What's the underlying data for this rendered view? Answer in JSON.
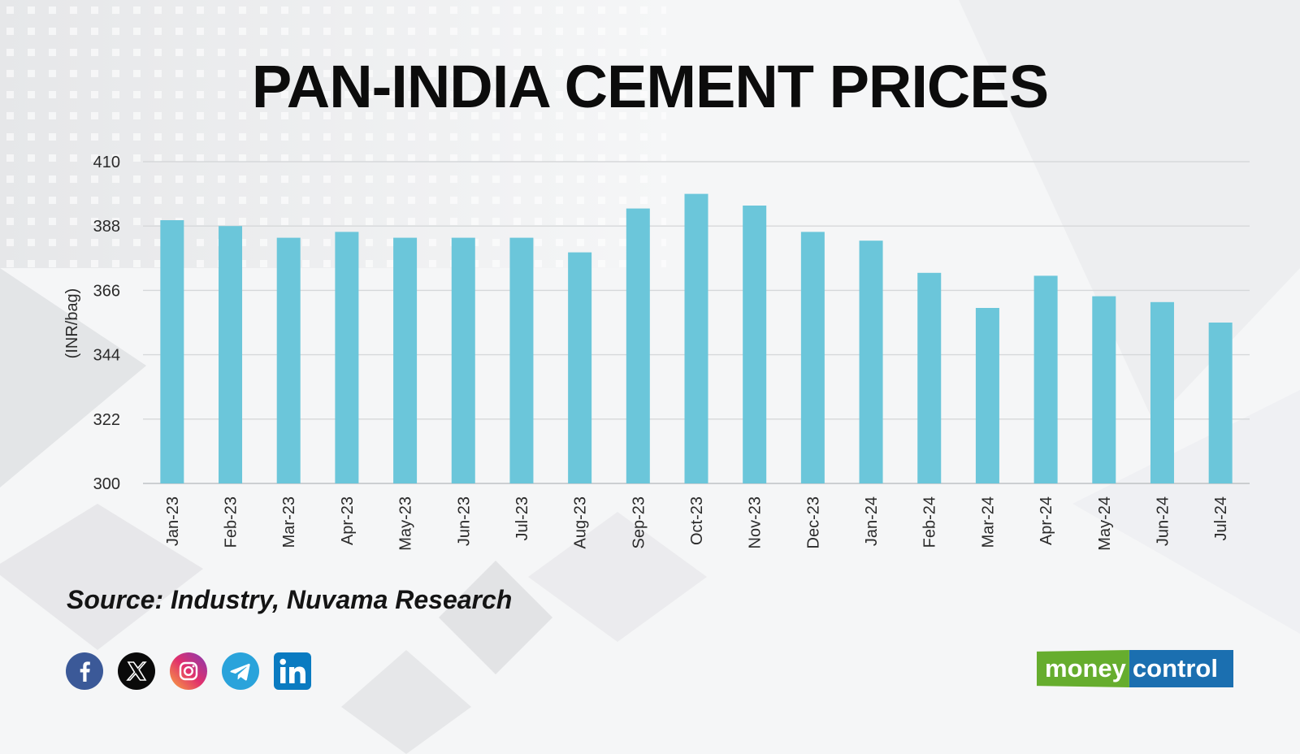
{
  "header": {
    "title": "PAN-INDIA CEMENT PRICES"
  },
  "chart_data": {
    "type": "bar",
    "title": "PAN-INDIA CEMENT PRICES",
    "xlabel": "",
    "ylabel": "(INR/bag)",
    "ylim": [
      300,
      410
    ],
    "yticks": [
      "410",
      "388",
      "366",
      "344",
      "322",
      "300"
    ],
    "grid": true,
    "categories": [
      "Jan-23",
      "Feb-23",
      "Mar-23",
      "Apr-23",
      "May-23",
      "Jun-23",
      "Jul-23",
      "Aug-23",
      "Sep-23",
      "Oct-23",
      "Nov-23",
      "Dec-23",
      "Jan-24",
      "Feb-24",
      "Mar-24",
      "Apr-24",
      "May-24",
      "Jun-24",
      "Jul-24"
    ],
    "values": [
      390,
      388,
      384,
      386,
      384,
      384,
      384,
      379,
      394,
      399,
      395,
      386,
      383,
      372,
      360,
      371,
      364,
      362,
      355
    ],
    "bar_color": "#6bc6da"
  },
  "footer": {
    "source": "Source: Industry, Nuvama Research",
    "social_icons": [
      "facebook-icon",
      "x-twitter-icon",
      "instagram-icon",
      "telegram-icon",
      "linkedin-icon"
    ],
    "brand_left": "money",
    "brand_right": "control"
  }
}
